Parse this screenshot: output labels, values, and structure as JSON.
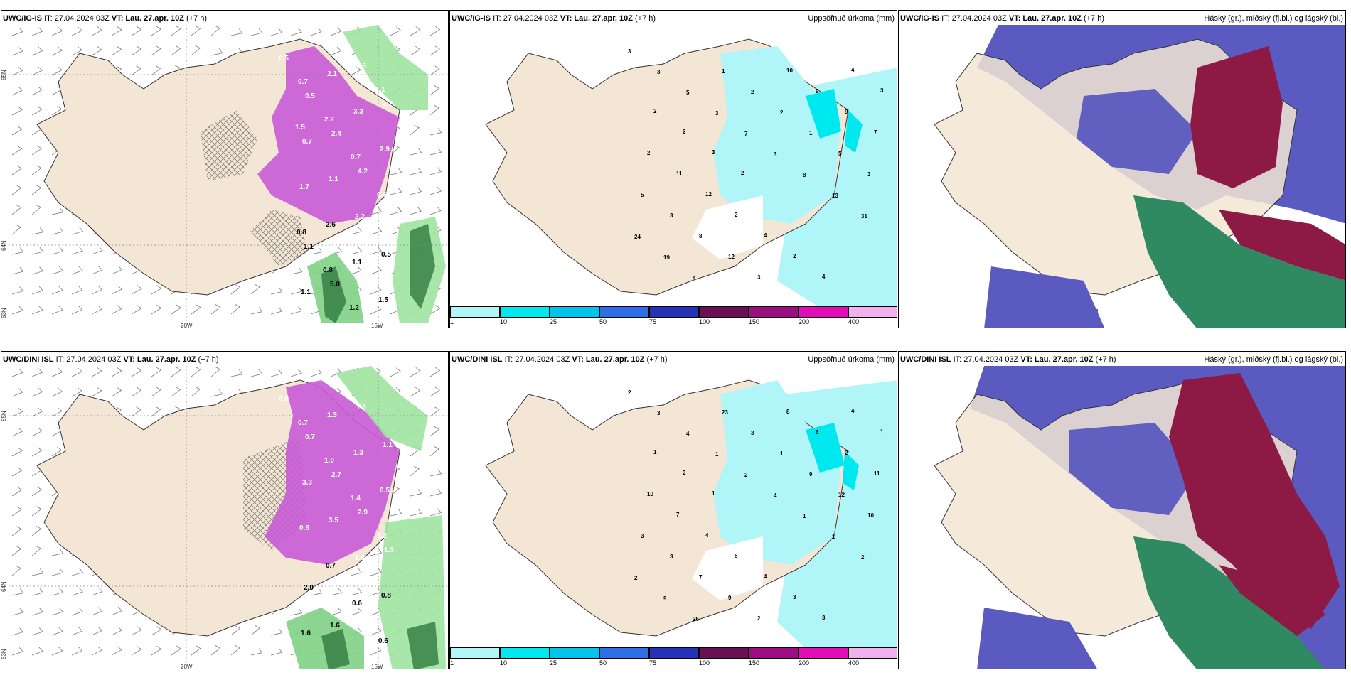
{
  "rows": [
    {
      "model": "UWC/IG-IS",
      "model_b": "UWC/IG-IS",
      "init": "IT: 27.04.2024 03Z",
      "valid_label": "VT:",
      "valid": "Lau. 27.apr. 10Z",
      "lead": "(+7 h)",
      "panel1_values": [
        "0.5",
        "0.5",
        "2.4",
        "4.2",
        "2.0",
        "1.1",
        "5.0",
        "2.5",
        "2.7",
        "0.7",
        "1.1",
        "2.2",
        "0.5",
        "1.1",
        "2.1",
        "3.3",
        "2.9",
        "1.7",
        "2.6",
        "1.1",
        "1.5",
        "0.7",
        "2.2",
        "0.7",
        "0.6",
        "0.8",
        "0.8",
        "1.2",
        "1.1",
        "1.5"
      ],
      "panel2_values": [
        "3",
        "3",
        "5",
        "3",
        "7",
        "3",
        "8",
        "13",
        "31",
        "24",
        "19",
        "4",
        "1",
        "2",
        "2",
        "1",
        "5",
        "3",
        "5",
        "3",
        "8",
        "12",
        "3",
        "10",
        "9",
        "9",
        "7",
        "2",
        "11",
        "12",
        "2",
        "4",
        "2",
        "4",
        "4",
        "3",
        "2",
        "2",
        "3",
        "2"
      ],
      "lat_labels": [
        "65N",
        "64N",
        "63N"
      ],
      "lon_labels": [
        "20W",
        "15W"
      ],
      "panel2_title": "Uppsöfnuð úrkoma (mm)",
      "panel3_title": "Háský (gr.), miðský (fj.bl.) og lágský (bl.)"
    },
    {
      "model": "UWC/DINI ISL",
      "model_b": "UWC/DINI ISL",
      "init": "IT: 27.04.2024 03Z",
      "valid_label": "VT:",
      "valid": "Lau. 27.apr. 10Z",
      "lead": "(+7 h)",
      "panel1_values": [
        "0.8",
        "0.7",
        "2.7",
        "2.9",
        "1.3",
        "2.0",
        "1.6",
        "1.3",
        "1.1",
        "3.3",
        "3.5",
        "1.9",
        "0.8",
        "1.6",
        "1.3",
        "1.3",
        "0.5",
        "0.8",
        "0.7",
        "0.6",
        "0.6",
        "0.7",
        "1.0",
        "1.4",
        "1.2"
      ],
      "panel2_values": [
        "2",
        "3",
        "4",
        "1",
        "2",
        "4",
        "1",
        "1",
        "2",
        "2",
        "9",
        "26",
        "23",
        "3",
        "1",
        "9",
        "12",
        "10",
        "3",
        "3",
        "7",
        "9",
        "2",
        "8",
        "6",
        "2",
        "11",
        "10",
        "7",
        "4",
        "5",
        "4",
        "3",
        "3",
        "4",
        "1",
        "1",
        "2",
        "1"
      ],
      "lat_labels": [
        "65N",
        "64N",
        "63N"
      ],
      "lon_labels": [
        "20W",
        "15W"
      ],
      "panel2_title": "Uppsöfnuð úrkoma (mm)",
      "panel3_title": "Háský (gr.), miðský (fj.bl.) og lágský (bl.)"
    }
  ],
  "colorbar": {
    "labels": [
      "1",
      "10",
      "25",
      "50",
      "75",
      "100",
      "150",
      "200",
      "400"
    ],
    "colors": [
      "#b0f6f8",
      "#00e8ef",
      "#00c4ea",
      "#2d6fe6",
      "#2531b6",
      "#6a0f55",
      "#9c0e82",
      "#e20db7",
      "#f2b0ef"
    ]
  },
  "colors": {
    "land": "#f3e6d4",
    "sea": "#ffffff",
    "precip_light": "#b0f6f8",
    "precip_mid": "#00e8ef",
    "snow_purple": "#c85bd6",
    "rain_green": "#9ee3a0",
    "high_cloud": "#5a5ac0",
    "mid_cloud": "#8c1a45",
    "low_cloud": "#2f8a62"
  }
}
